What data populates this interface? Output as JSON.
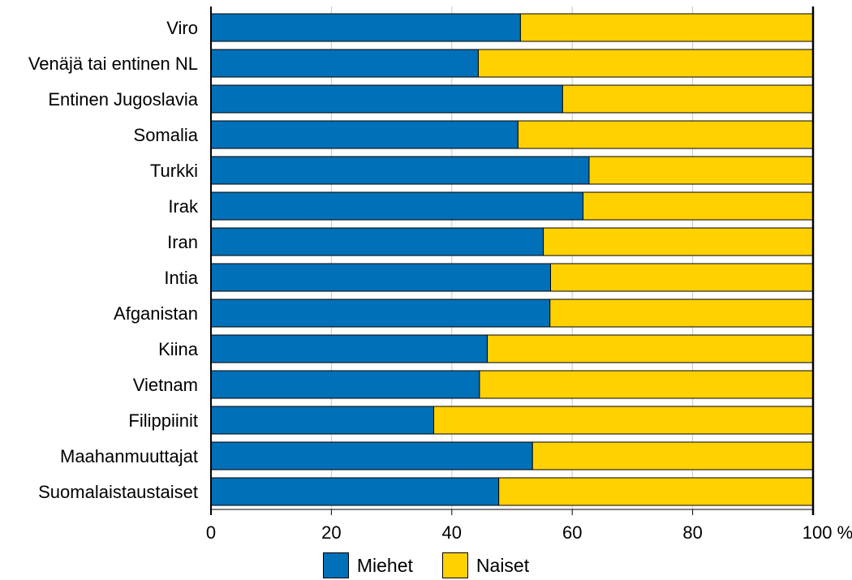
{
  "chart_data": {
    "type": "bar",
    "orientation": "horizontal",
    "stacked": true,
    "categories": [
      "Viro",
      "Venäjä tai entinen NL",
      "Entinen Jugoslavia",
      "Somalia",
      "Turkki",
      "Irak",
      "Iran",
      "Intia",
      "Afganistan",
      "Kiina",
      "Vietnam",
      "Filippiinit",
      "Maahanmuuttajat",
      "Suomalaistaustaiset"
    ],
    "series": [
      {
        "name": "Miehet",
        "color": "#0070b8",
        "values": [
          51.4,
          44.4,
          58.4,
          51.0,
          62.8,
          61.8,
          55.2,
          56.4,
          56.3,
          45.9,
          44.6,
          37.0,
          53.4,
          47.8
        ]
      },
      {
        "name": "Naiset",
        "color": "#ffd100",
        "values": [
          48.6,
          55.6,
          41.6,
          49.0,
          37.2,
          38.2,
          44.8,
          43.6,
          43.7,
          54.1,
          55.4,
          63.0,
          46.6,
          52.2
        ]
      }
    ],
    "xlim": [
      0,
      100
    ],
    "xticks": [
      0,
      20,
      40,
      60,
      80,
      100
    ],
    "xtick_labels": [
      "0",
      "20",
      "40",
      "60",
      "80",
      "100 %"
    ],
    "grid": "vertical",
    "legend_position": "bottom"
  }
}
